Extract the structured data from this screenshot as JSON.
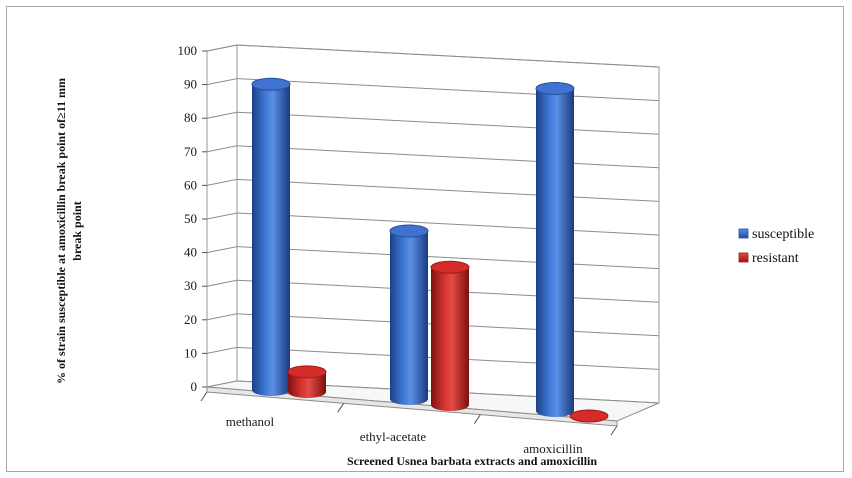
{
  "chart_data": {
    "type": "bar",
    "style": "3d-cylinder",
    "categories": [
      "methanol",
      "ethyl-acetate",
      "amoxicillin"
    ],
    "series": [
      {
        "name": "susceptible",
        "values": [
          91,
          50,
          96
        ],
        "color": "#2e5fb8"
      },
      {
        "name": "resistant",
        "values": [
          6,
          41,
          0
        ],
        "color": "#c0211f"
      }
    ],
    "ylim": [
      0,
      100
    ],
    "yticks": [
      0,
      10,
      20,
      30,
      40,
      50,
      60,
      70,
      80,
      90,
      100
    ],
    "ylabel_line1": "% of strain susceptible at amoxicillin break point of≥11 mm",
    "ylabel_line2": "break point",
    "xlabel": "Screened Usnea barbata extracts and amoxicillin",
    "grid": true,
    "legend_position": "right"
  }
}
